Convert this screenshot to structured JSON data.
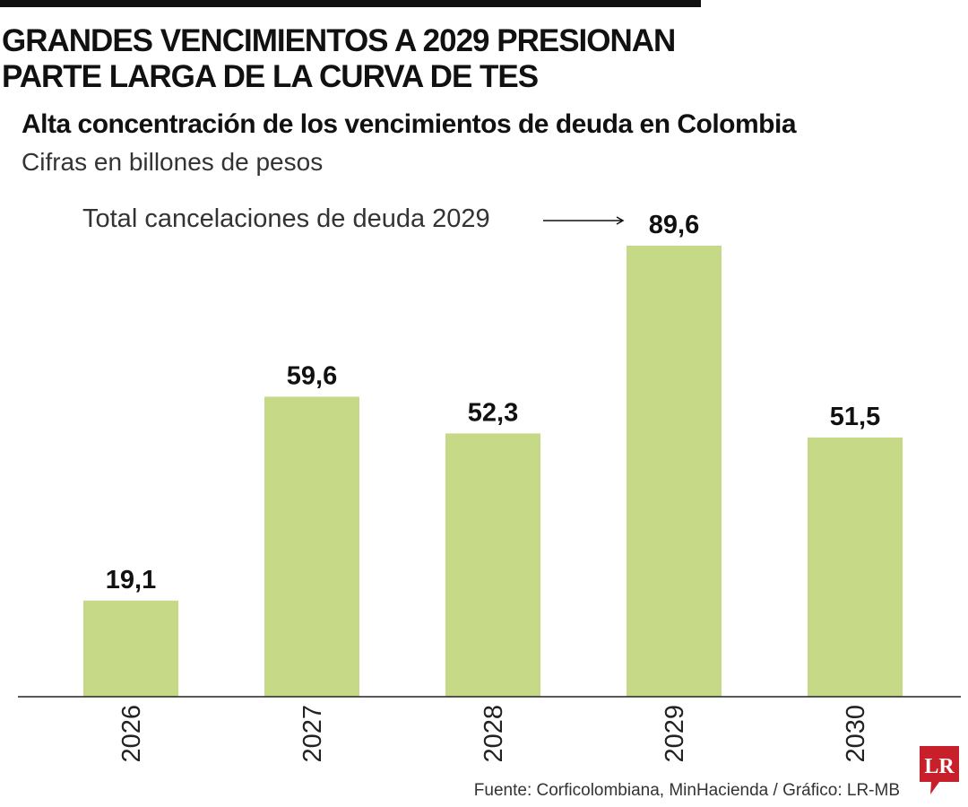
{
  "header": {
    "title_line1": "GRANDES VENCIMIENTOS A 2029 PRESIONAN",
    "title_line2": "PARTE LARGA DE LA CURVA DE TES"
  },
  "chart_data": {
    "type": "bar",
    "title": "Alta concentración de los vencimientos de deuda en Colombia",
    "subtitle": "Cifras en billones de pesos",
    "categories": [
      "2026",
      "2027",
      "2028",
      "2029",
      "2030"
    ],
    "values": [
      19.1,
      59.6,
      52.3,
      89.6,
      51.5
    ],
    "value_labels": [
      "19,1",
      "59,6",
      "52,3",
      "89,6",
      "51,5"
    ],
    "annotation": "Total cancelaciones de deuda 2029",
    "xlabel": "",
    "ylabel": "",
    "ylim": [
      0,
      89.6
    ],
    "grid": false,
    "bar_color": "#c5d987"
  },
  "footer": {
    "source": "Fuente: Corficolombiana, MinHacienda / Gráfico: LR-MB",
    "logo_text": "LR",
    "logo_color": "#c8202a"
  }
}
